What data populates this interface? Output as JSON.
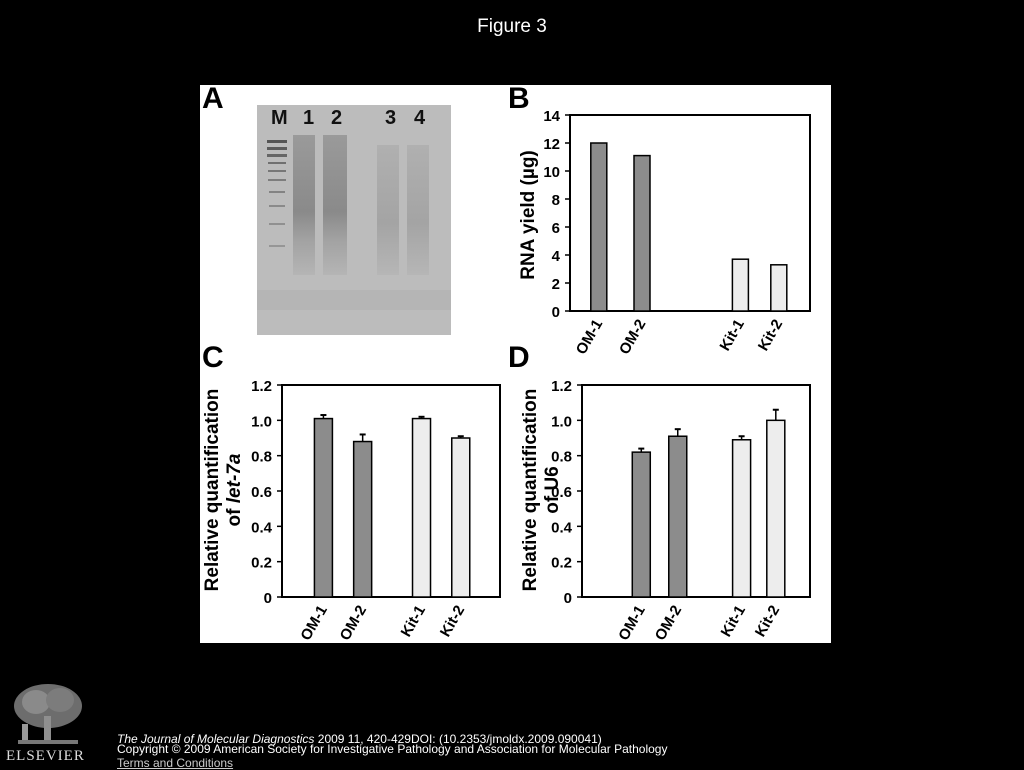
{
  "figure_title": "Figure 3",
  "panels": {
    "A": "A",
    "B": "B",
    "C": "C",
    "D": "D"
  },
  "gel": {
    "lanes": [
      "M",
      "1",
      "2",
      "3",
      "4"
    ]
  },
  "footer": {
    "journal_name": "The Journal of Molecular Diagnostics",
    "citation_rest": " 2009 11, 420-429DOI: (10.2353/jmoldx.2009.090041)",
    "copyright": "Copyright © 2009 American Society for Investigative Pathology and Association for Molecular Pathology",
    "terms": "Terms and Conditions",
    "publisher": "ELSEVIER"
  },
  "colors": {
    "dark_bar": "#8c8c8c",
    "light_bar": "#ededed",
    "background": "#000000",
    "panel": "#ffffff"
  },
  "chart_data": [
    {
      "panel": "B",
      "type": "bar",
      "categories": [
        "OM-1",
        "OM-2",
        "Kit-1",
        "Kit-2"
      ],
      "values": [
        12.0,
        11.1,
        3.7,
        3.3
      ],
      "errors": [
        0,
        0,
        0,
        0
      ],
      "ylabel": "RNA yield (µg)",
      "ylim": [
        0,
        14
      ],
      "yticks": [
        0,
        2,
        4,
        6,
        8,
        10,
        12,
        14
      ],
      "bar_colors": [
        "#8c8c8c",
        "#8c8c8c",
        "#ededed",
        "#ededed"
      ]
    },
    {
      "panel": "C",
      "type": "bar",
      "categories": [
        "OM-1",
        "OM-2",
        "Kit-1",
        "Kit-2"
      ],
      "values": [
        1.01,
        0.88,
        1.01,
        0.9
      ],
      "errors": [
        0.02,
        0.04,
        0.01,
        0.01
      ],
      "ylabel_line1": "Relative  quantification",
      "ylabel_line2_prefix": "of ",
      "ylabel_line2_italic": "let-7a",
      "ylim": [
        0,
        1.2
      ],
      "yticks": [
        "0",
        "0.2",
        "0.4",
        "0.6",
        "0.8",
        "1.0",
        "1.2"
      ],
      "bar_colors": [
        "#8c8c8c",
        "#8c8c8c",
        "#ededed",
        "#ededed"
      ]
    },
    {
      "panel": "D",
      "type": "bar",
      "categories": [
        "OM-1",
        "OM-2",
        "Kit-1",
        "Kit-2"
      ],
      "values": [
        0.82,
        0.91,
        0.89,
        1.0
      ],
      "errors": [
        0.02,
        0.04,
        0.02,
        0.06
      ],
      "ylabel_line1": "Relative  quantification",
      "ylabel_line2_prefix": "of U6",
      "ylabel_line2_italic": "",
      "ylim": [
        0,
        1.2
      ],
      "yticks": [
        "0",
        "0.2",
        "0.4",
        "0.6",
        "0.8",
        "1.0",
        "1.2"
      ],
      "bar_colors": [
        "#8c8c8c",
        "#8c8c8c",
        "#ededed",
        "#ededed"
      ]
    }
  ]
}
